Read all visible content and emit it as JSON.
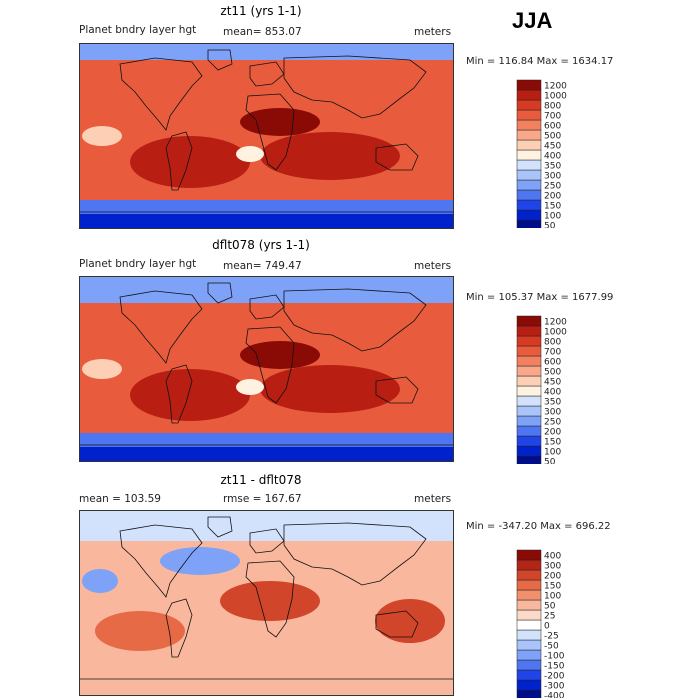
{
  "season": "JJA",
  "colors": {
    "seq": [
      "#000d8a",
      "#0022cc",
      "#1f45e8",
      "#4f76f2",
      "#7ea2f7",
      "#a9c4fa",
      "#d3e2fc",
      "#fff2e0",
      "#fdd0b5",
      "#f9a98a",
      "#f2815f",
      "#e85c3d",
      "#d63a22",
      "#b81f12",
      "#8a0a06"
    ],
    "diff": [
      "#000d8a",
      "#0022cc",
      "#1f45e8",
      "#4f76f2",
      "#7ea2f7",
      "#a9c4fa",
      "#d3e2fc",
      "#ffffff",
      "#fddac8",
      "#f9b79d",
      "#f28f6d",
      "#e66a45",
      "#d1452a",
      "#b32515",
      "#8a0a06"
    ]
  },
  "chart_data": [
    {
      "type": "heatmap",
      "title": "zt11 (yrs 1-1)",
      "variable": "Planet bndry layer hgt",
      "mean_label": "mean= 853.07",
      "units": "meters",
      "min_max": "Min = 116.84 Max = 1634.17",
      "min": 116.84,
      "max": 1634.17,
      "mean": 853.07,
      "colorbar_levels": [
        "50",
        "100",
        "150",
        "200",
        "250",
        "300",
        "350",
        "400",
        "450",
        "500",
        "600",
        "700",
        "800",
        "1000",
        "1200"
      ]
    },
    {
      "type": "heatmap",
      "title": "dflt078 (yrs 1-1)",
      "variable": "Planet bndry layer hgt",
      "mean_label": "mean= 749.47",
      "units": "meters",
      "min_max": "Min = 105.37 Max = 1677.99",
      "min": 105.37,
      "max": 1677.99,
      "mean": 749.47,
      "colorbar_levels": [
        "50",
        "100",
        "150",
        "200",
        "250",
        "300",
        "350",
        "400",
        "450",
        "500",
        "600",
        "700",
        "800",
        "1000",
        "1200"
      ]
    },
    {
      "type": "heatmap",
      "title": "zt11 - dflt078",
      "mean_label": "mean = 103.59",
      "rmse_label": "rmse = 167.67",
      "units": "meters",
      "min_max": "Min = -347.20 Max = 696.22",
      "min": -347.2,
      "max": 696.22,
      "mean": 103.59,
      "rmse": 167.67,
      "colorbar_levels": [
        "-400",
        "-300",
        "-200",
        "-150",
        "-100",
        "-50",
        "-25",
        "0",
        "25",
        "50",
        "100",
        "150",
        "200",
        "300",
        "400"
      ]
    }
  ]
}
